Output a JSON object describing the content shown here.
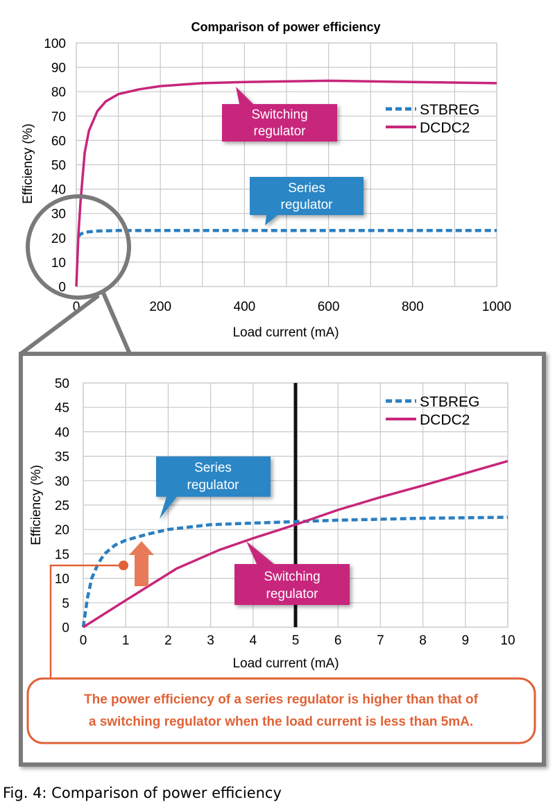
{
  "chart_data": [
    {
      "type": "line",
      "title": "Comparison of power efficiency",
      "xlabel": "Load current (mA)",
      "ylabel": "Efficiency (%)",
      "xlim": [
        0,
        1000
      ],
      "ylim": [
        0,
        100
      ],
      "xticks": [
        0,
        200,
        400,
        600,
        800,
        1000
      ],
      "yticks": [
        0,
        10,
        20,
        30,
        40,
        50,
        60,
        70,
        80,
        90,
        100
      ],
      "grid": true,
      "legend_position": "top-right",
      "series": [
        {
          "name": "STBREG",
          "style": "dashed",
          "color": "#2b7fc1",
          "x": [
            5,
            10,
            20,
            50,
            100,
            200,
            400,
            600,
            800,
            1000
          ],
          "y": [
            20.5,
            21.5,
            22.3,
            22.8,
            23,
            23,
            23,
            23,
            23,
            23
          ]
        },
        {
          "name": "DCDC2",
          "style": "solid",
          "color": "#c7267b",
          "x": [
            0,
            5,
            10,
            20,
            30,
            50,
            70,
            100,
            150,
            200,
            300,
            400,
            600,
            800,
            1000
          ],
          "y": [
            0,
            21,
            35,
            55,
            64,
            72,
            76,
            79,
            81,
            82.3,
            83.5,
            84,
            84.5,
            84,
            83.5
          ]
        }
      ],
      "annotations": [
        {
          "line1": "Switching",
          "line2": "regulator",
          "color": "#c7267b"
        },
        {
          "line1": "Series",
          "line2": "regulator",
          "color": "#2b86c5"
        }
      ]
    },
    {
      "type": "line",
      "title": "",
      "xlabel": "Load current (mA)",
      "ylabel": "Efficiency (%)",
      "xlim": [
        0,
        10
      ],
      "ylim": [
        0,
        50
      ],
      "xticks": [
        0,
        1,
        2,
        3,
        4,
        5,
        6,
        7,
        8,
        9,
        10
      ],
      "yticks": [
        0,
        5,
        10,
        15,
        20,
        25,
        30,
        35,
        40,
        45,
        50
      ],
      "grid": true,
      "legend_position": "top-right",
      "vertical_marker_x": 5,
      "series": [
        {
          "name": "STBREG",
          "style": "dashed",
          "color": "#2b7fc1",
          "x": [
            0,
            0.1,
            0.2,
            0.35,
            0.5,
            0.75,
            1,
            1.5,
            2,
            3,
            4,
            5,
            6,
            7,
            8,
            9,
            10
          ],
          "y": [
            0,
            6,
            10,
            13,
            15,
            16.8,
            17.8,
            19,
            20,
            21,
            21.3,
            21.6,
            21.9,
            22.1,
            22.3,
            22.4,
            22.5
          ]
        },
        {
          "name": "DCDC2",
          "style": "solid",
          "color": "#c7267b",
          "x": [
            0,
            1,
            2.2,
            3.2,
            4,
            5,
            6,
            7,
            8,
            9,
            10
          ],
          "y": [
            0,
            5.5,
            12,
            15.8,
            18.2,
            21,
            24,
            26.6,
            29,
            31.5,
            34
          ]
        }
      ],
      "annotations": [
        {
          "line1": "Series",
          "line2": "regulator",
          "color": "#2b86c5"
        },
        {
          "line1": "Switching",
          "line2": "regulator",
          "color": "#c7267b"
        }
      ],
      "callout": {
        "line1": "The power efficiency of a series regulator is higher than that of",
        "line2": "a switching regulator when the load current is less than 5mA.",
        "color": "#e06236"
      }
    }
  ],
  "figure_caption": "Fig. 4: Comparison of power efficiency"
}
